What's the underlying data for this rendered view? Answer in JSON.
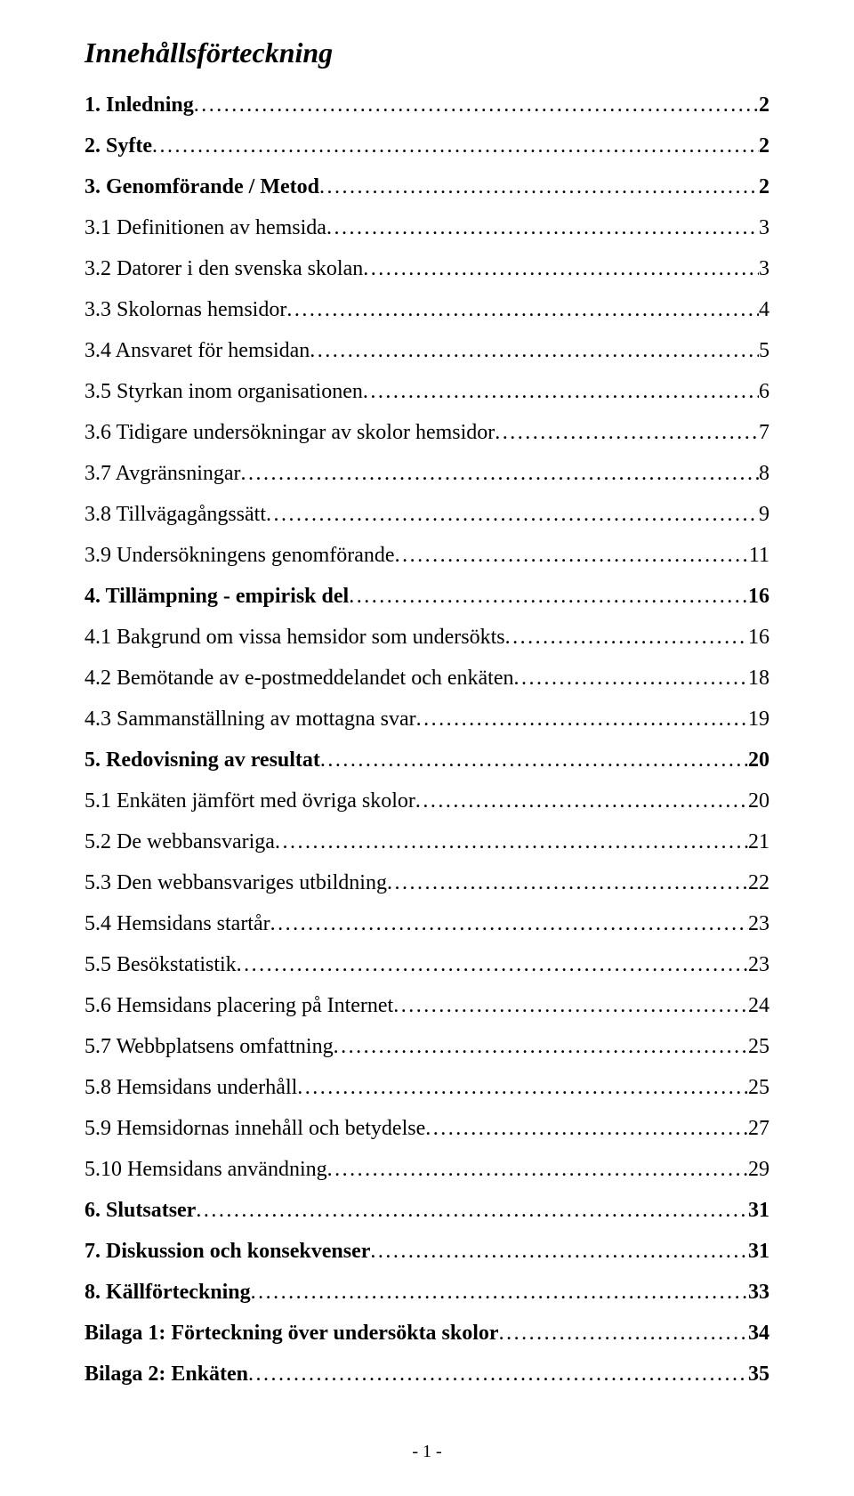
{
  "title": "Innehållsförteckning",
  "footer": "- 1 -",
  "entries": [
    {
      "label": "1. Inledning",
      "page": "2",
      "bold": true
    },
    {
      "label": "2. Syfte",
      "page": "2",
      "bold": true
    },
    {
      "label": "3. Genomförande / Metod",
      "page": "2",
      "bold": true
    },
    {
      "label": "3.1 Definitionen av hemsida",
      "page": "3",
      "bold": false
    },
    {
      "label": "3.2 Datorer i den svenska skolan",
      "page": "3",
      "bold": false
    },
    {
      "label": "3.3 Skolornas hemsidor",
      "page": "4",
      "bold": false
    },
    {
      "label": "3.4 Ansvaret för hemsidan",
      "page": "5",
      "bold": false
    },
    {
      "label": "3.5 Styrkan inom organisationen",
      "page": "6",
      "bold": false
    },
    {
      "label": "3.6 Tidigare undersökningar av skolor hemsidor",
      "page": "7",
      "bold": false
    },
    {
      "label": "3.7 Avgränsningar",
      "page": "8",
      "bold": false
    },
    {
      "label": "3.8 Tillvägagångssätt",
      "page": "9",
      "bold": false
    },
    {
      "label": "3.9 Undersökningens genomförande",
      "page": "11",
      "bold": false
    },
    {
      "label": "4. Tillämpning - empirisk del",
      "page": "16",
      "bold": true
    },
    {
      "label": "4.1 Bakgrund om vissa hemsidor som undersökts",
      "page": "16",
      "bold": false
    },
    {
      "label": "4.2 Bemötande av e-postmeddelandet och enkäten",
      "page": "18",
      "bold": false
    },
    {
      "label": "4.3 Sammanställning av mottagna svar",
      "page": "19",
      "bold": false
    },
    {
      "label": "5. Redovisning av resultat",
      "page": "20",
      "bold": true
    },
    {
      "label": "5.1 Enkäten jämfört med övriga skolor",
      "page": "20",
      "bold": false
    },
    {
      "label": "5.2 De webbansvariga",
      "page": "21",
      "bold": false
    },
    {
      "label": "5.3 Den webbansvariges utbildning",
      "page": "22",
      "bold": false
    },
    {
      "label": "5.4 Hemsidans startår",
      "page": "23",
      "bold": false
    },
    {
      "label": "5.5 Besökstatistik",
      "page": "23",
      "bold": false
    },
    {
      "label": "5.6 Hemsidans placering på Internet",
      "page": "24",
      "bold": false
    },
    {
      "label": "5.7 Webbplatsens omfattning",
      "page": "25",
      "bold": false
    },
    {
      "label": "5.8 Hemsidans underhåll",
      "page": "25",
      "bold": false
    },
    {
      "label": "5.9 Hemsidornas innehåll och betydelse",
      "page": "27",
      "bold": false
    },
    {
      "label": "5.10 Hemsidans användning",
      "page": "29",
      "bold": false
    },
    {
      "label": "6. Slutsatser",
      "page": "31",
      "bold": true
    },
    {
      "label": "7. Diskussion och konsekvenser",
      "page": "31",
      "bold": true
    },
    {
      "label": "8. Källförteckning",
      "page": "33",
      "bold": true
    },
    {
      "label": "Bilaga 1: Förteckning över undersökta skolor",
      "page": "34",
      "bold": true
    },
    {
      "label": "Bilaga 2: Enkäten",
      "page": "35",
      "bold": true
    }
  ]
}
